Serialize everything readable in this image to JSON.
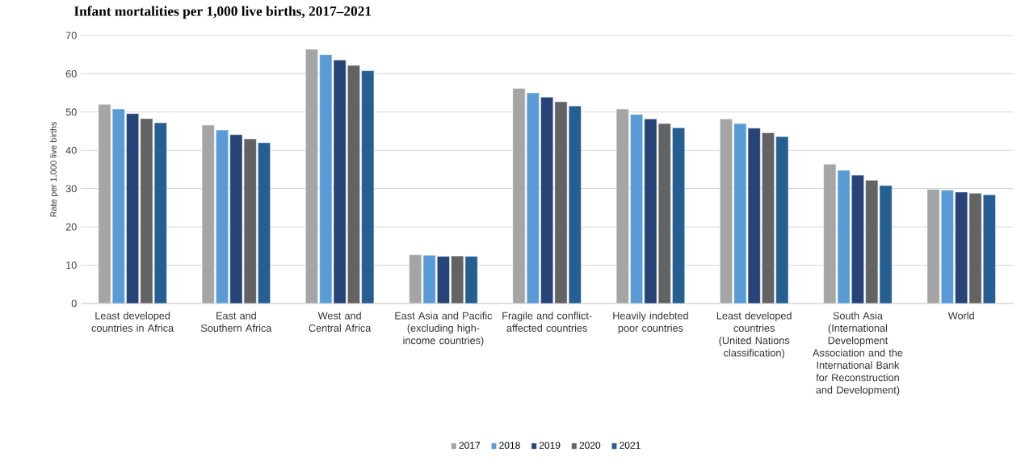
{
  "chart_data": {
    "type": "bar",
    "title": "Infant mortalities per 1,000 live births, 2017–2021",
    "ylabel": "Rate per 1,000 live births",
    "categories": [
      "Least developed countries in Africa",
      "East and Southern Africa",
      "West and Central Africa",
      "East Asia and Pacific (excluding high-income countries)",
      "Fragile and conflict-affected countries",
      "Heavily indebted poor countries",
      "Least developed countries (United Nations classification)",
      "South Asia (International Development Association and the International Bank for Reconstruction and Development)",
      "World"
    ],
    "series": [
      {
        "name": "2017",
        "color": "#a5a5a5",
        "values": [
          52.0,
          46.6,
          66.4,
          12.7,
          56.2,
          50.8,
          48.2,
          36.4,
          29.8
        ]
      },
      {
        "name": "2018",
        "color": "#5b9bd5",
        "values": [
          50.8,
          45.3,
          65.0,
          12.6,
          55.0,
          49.4,
          47.0,
          34.8,
          29.6
        ]
      },
      {
        "name": "2019",
        "color": "#264478",
        "values": [
          49.6,
          44.1,
          63.6,
          12.3,
          53.9,
          48.2,
          45.8,
          33.5,
          29.1
        ]
      },
      {
        "name": "2020",
        "color": "#636363",
        "values": [
          48.3,
          43.0,
          62.2,
          12.4,
          52.7,
          47.0,
          44.6,
          32.2,
          28.8
        ]
      },
      {
        "name": "2021",
        "color": "#255e91",
        "values": [
          47.2,
          42.0,
          60.8,
          12.3,
          51.6,
          45.9,
          43.6,
          30.8,
          28.4
        ]
      }
    ],
    "ylim": [
      0,
      70
    ],
    "yticks": [
      0,
      10,
      20,
      30,
      40,
      50,
      60,
      70
    ],
    "grid": "y",
    "legend": "bottom"
  }
}
